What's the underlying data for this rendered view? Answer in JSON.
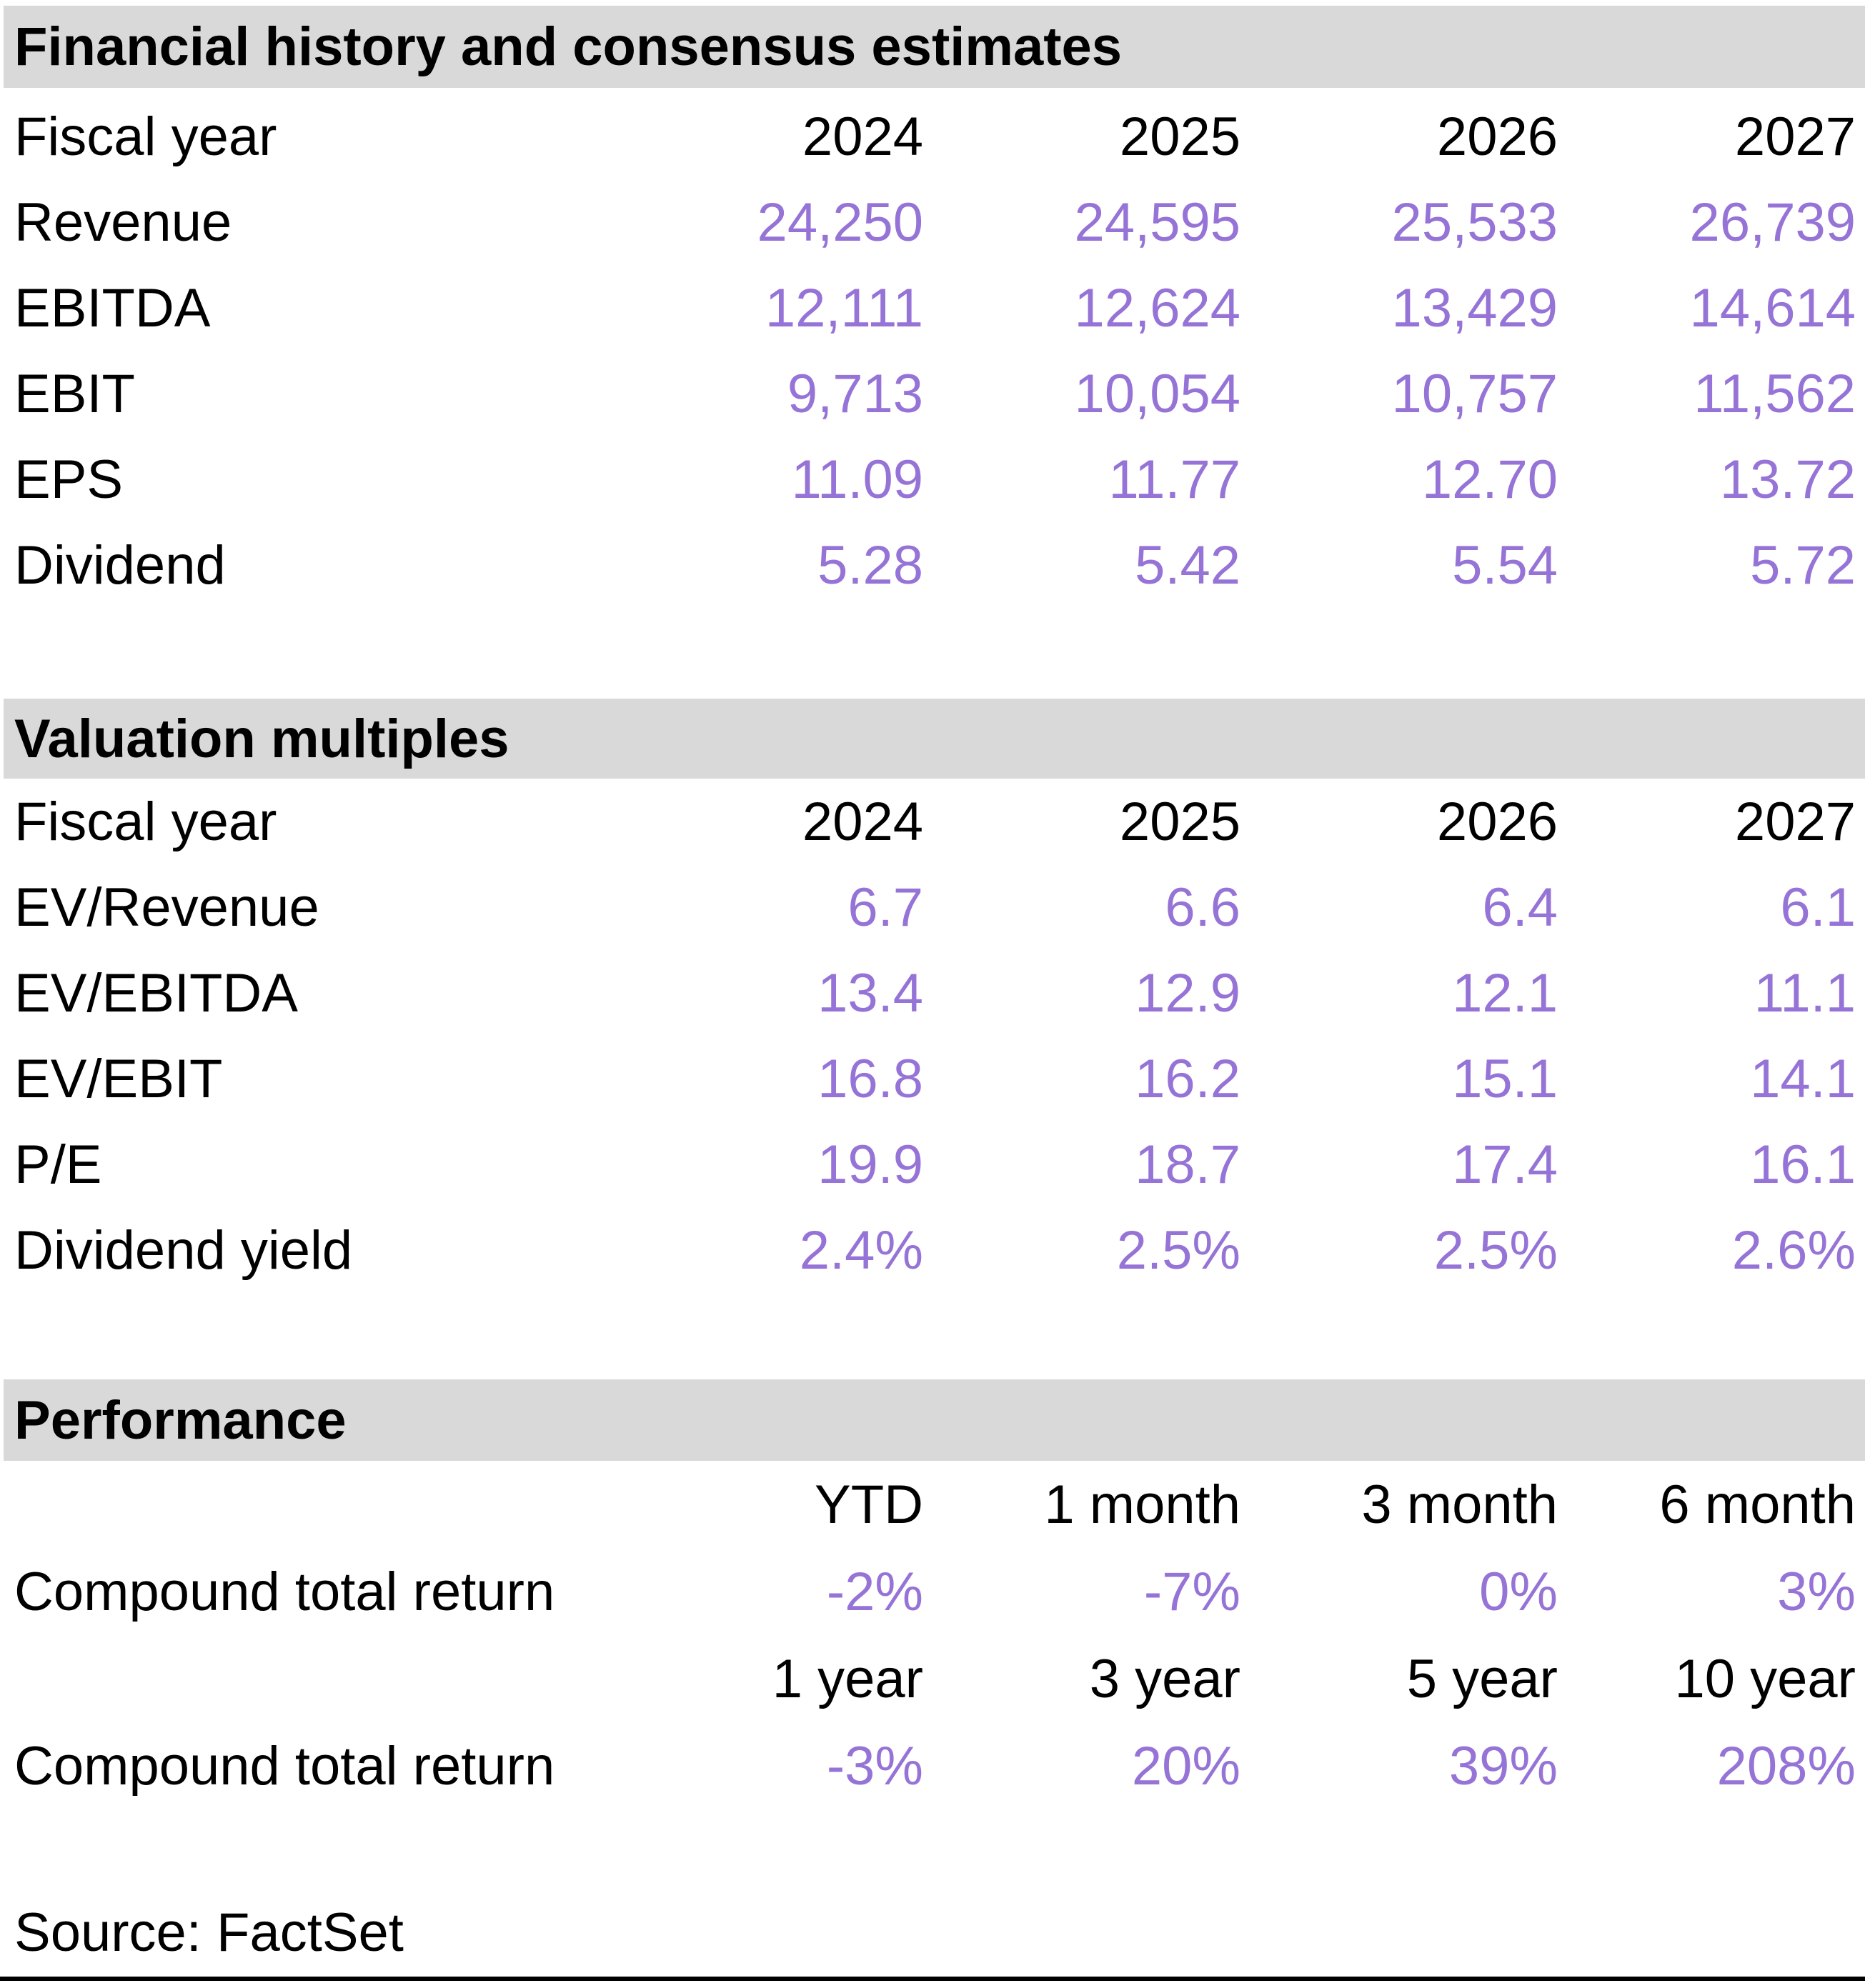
{
  "colors": {
    "accent": "#9673D6",
    "header_bg": "#D9D9D9"
  },
  "sections": [
    {
      "title": "Financial history and consensus estimates",
      "header_row": {
        "label": "Fiscal year",
        "cols": [
          "2024",
          "2025",
          "2026",
          "2027"
        ]
      },
      "rows": [
        {
          "label": "Revenue",
          "values": [
            "24,250",
            "24,595",
            "25,533",
            "26,739"
          ]
        },
        {
          "label": "EBITDA",
          "values": [
            "12,111",
            "12,624",
            "13,429",
            "14,614"
          ]
        },
        {
          "label": "EBIT",
          "values": [
            "9,713",
            "10,054",
            "10,757",
            "11,562"
          ]
        },
        {
          "label": "EPS",
          "values": [
            "11.09",
            "11.77",
            "12.70",
            "13.72"
          ]
        },
        {
          "label": "Dividend",
          "values": [
            "5.28",
            "5.42",
            "5.54",
            "5.72"
          ]
        }
      ]
    },
    {
      "title": "Valuation multiples",
      "header_row": {
        "label": "Fiscal year",
        "cols": [
          "2024",
          "2025",
          "2026",
          "2027"
        ]
      },
      "rows": [
        {
          "label": "EV/Revenue",
          "values": [
            "6.7",
            "6.6",
            "6.4",
            "6.1"
          ]
        },
        {
          "label": "EV/EBITDA",
          "values": [
            "13.4",
            "12.9",
            "12.1",
            "11.1"
          ]
        },
        {
          "label": "EV/EBIT",
          "values": [
            "16.8",
            "16.2",
            "15.1",
            "14.1"
          ]
        },
        {
          "label": "P/E",
          "values": [
            "19.9",
            "18.7",
            "17.4",
            "16.1"
          ]
        },
        {
          "label": "Dividend yield",
          "values": [
            "2.4%",
            "2.5%",
            "2.5%",
            "2.6%"
          ]
        }
      ]
    },
    {
      "title": "Performance",
      "groups": [
        {
          "periods": [
            "YTD",
            "1 month",
            "3 month",
            "6 month"
          ],
          "row": {
            "label": "Compound total return",
            "values": [
              "-2%",
              "-7%",
              "0%",
              "3%"
            ]
          }
        },
        {
          "periods": [
            "1 year",
            "3 year",
            "5 year",
            "10 year"
          ],
          "row": {
            "label": "Compound total return",
            "values": [
              "-3%",
              "20%",
              "39%",
              "208%"
            ]
          }
        }
      ]
    }
  ],
  "source": "Source: FactSet"
}
